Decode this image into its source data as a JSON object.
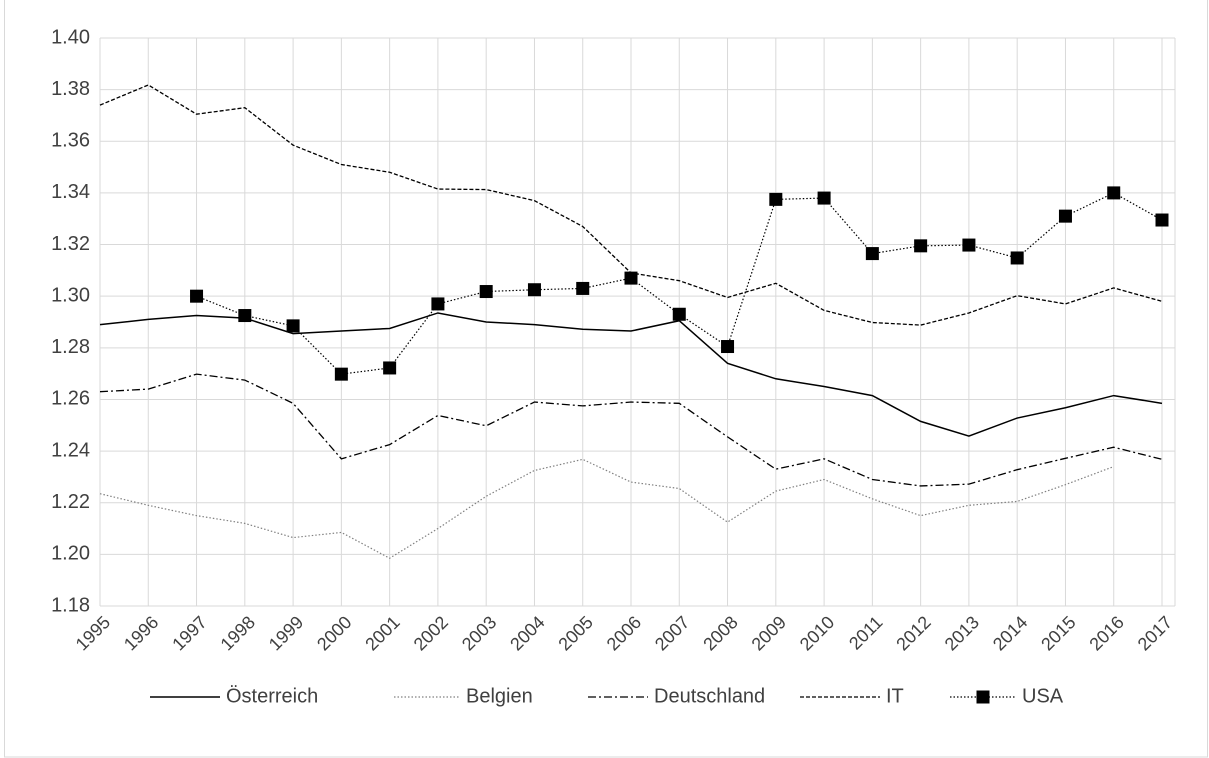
{
  "chart_data": {
    "type": "line",
    "categories": [
      "1995",
      "1996",
      "1997",
      "1998",
      "1999",
      "2000",
      "2001",
      "2002",
      "2003",
      "2004",
      "2005",
      "2006",
      "2007",
      "2008",
      "2009",
      "2010",
      "2011",
      "2012",
      "2013",
      "2014",
      "2015",
      "2016",
      "2017"
    ],
    "series": [
      {
        "name": "Österreich",
        "color": "#000000",
        "line_style": "solid",
        "values": [
          1.289,
          1.291,
          1.2925,
          1.2915,
          1.2855,
          1.2865,
          1.2875,
          1.2935,
          1.29,
          1.289,
          1.2872,
          1.2865,
          1.2905,
          1.274,
          1.268,
          1.265,
          1.2615,
          1.2515,
          1.2458,
          1.2528,
          1.2568,
          1.2615,
          1.2585
        ]
      },
      {
        "name": "Belgien",
        "color": "#808080",
        "line_style": "dotted",
        "values": [
          1.2235,
          1.219,
          1.215,
          1.212,
          1.2065,
          1.2085,
          1.1985,
          1.21,
          1.2225,
          1.2325,
          1.2368,
          1.228,
          1.2255,
          1.2125,
          1.2245,
          1.229,
          1.2215,
          1.215,
          1.219,
          1.2205,
          1.227,
          1.234,
          null
        ]
      },
      {
        "name": "Deutschland",
        "color": "#000000",
        "line_style": "dashdot",
        "values": [
          1.263,
          1.264,
          1.2698,
          1.2675,
          1.2585,
          1.237,
          1.2425,
          1.2538,
          1.2498,
          1.259,
          1.2575,
          1.259,
          1.2585,
          1.2455,
          1.233,
          1.237,
          1.229,
          1.2265,
          1.2272,
          1.2328,
          1.2372,
          1.2415,
          1.2368
        ]
      },
      {
        "name": "IT",
        "color": "#000000",
        "line_style": "dashed",
        "values": [
          1.374,
          1.3818,
          1.3705,
          1.373,
          1.3585,
          1.351,
          1.348,
          1.3415,
          1.3413,
          1.337,
          1.327,
          1.309,
          1.306,
          1.2995,
          1.305,
          1.2945,
          1.2898,
          1.2888,
          1.2935,
          1.3002,
          1.297,
          1.3032,
          1.298
        ]
      },
      {
        "name": "USA",
        "color": "#000000",
        "line_style": "dotted",
        "marker": "square",
        "values": [
          null,
          null,
          1.3,
          1.2925,
          1.2885,
          1.2698,
          1.2722,
          1.297,
          1.3018,
          1.3025,
          1.303,
          1.307,
          1.293,
          1.2805,
          1.3375,
          1.338,
          1.3165,
          1.3195,
          1.3198,
          1.3148,
          1.331,
          1.34,
          1.3295
        ]
      }
    ],
    "ylim": [
      1.18,
      1.4
    ],
    "yticks": [
      {
        "value": 1.18,
        "label": "1.18"
      },
      {
        "value": 1.2,
        "label": "1.20"
      },
      {
        "value": 1.22,
        "label": "1.22"
      },
      {
        "value": 1.24,
        "label": "1.24"
      },
      {
        "value": 1.26,
        "label": "1.26"
      },
      {
        "value": 1.28,
        "label": "1.28"
      },
      {
        "value": 1.3,
        "label": "1.30"
      },
      {
        "value": 1.32,
        "label": "1.32"
      },
      {
        "value": 1.34,
        "label": "1.34"
      },
      {
        "value": 1.36,
        "label": "1.36"
      },
      {
        "value": 1.38,
        "label": "1.38"
      },
      {
        "value": 1.4,
        "label": "1.40"
      }
    ],
    "grid": true,
    "legend": "bottom"
  }
}
